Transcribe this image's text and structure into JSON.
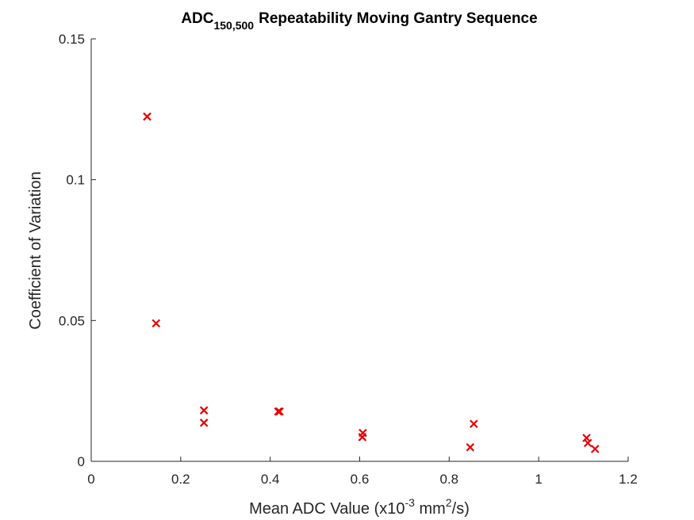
{
  "chart_data": {
    "type": "scatter",
    "title": {
      "main": "ADC",
      "subscript": "150,500",
      "rest": "Repeatability Moving Gantry Sequence"
    },
    "xlabel": {
      "prefix": "Mean ADC Value (x10",
      "exp1": "-3",
      "middle": " mm",
      "exp2": "2",
      "suffix": "/s)"
    },
    "ylabel": "Coefficient of Variation",
    "xlim": [
      0,
      1.2
    ],
    "ylim": [
      0,
      0.15
    ],
    "xticks": [
      0,
      0.2,
      0.4,
      0.6,
      0.8,
      1.0,
      1.2
    ],
    "xtick_labels": [
      "0",
      "0.2",
      "0.4",
      "0.6",
      "0.8",
      "1",
      "1.2"
    ],
    "yticks": [
      0,
      0.05,
      0.1,
      0.15
    ],
    "ytick_labels": [
      "0",
      "0.05",
      "0.1",
      "0.15"
    ],
    "marker": "x",
    "marker_color": "#e60000",
    "grid": false,
    "points": [
      {
        "x": 0.125,
        "y": 0.1224
      },
      {
        "x": 0.145,
        "y": 0.049
      },
      {
        "x": 0.252,
        "y": 0.0181
      },
      {
        "x": 0.252,
        "y": 0.0137
      },
      {
        "x": 0.418,
        "y": 0.0177
      },
      {
        "x": 0.421,
        "y": 0.0177
      },
      {
        "x": 0.607,
        "y": 0.0101
      },
      {
        "x": 0.606,
        "y": 0.0086
      },
      {
        "x": 0.847,
        "y": 0.005
      },
      {
        "x": 0.855,
        "y": 0.0133
      },
      {
        "x": 1.107,
        "y": 0.0083
      },
      {
        "x": 1.11,
        "y": 0.0065
      },
      {
        "x": 1.126,
        "y": 0.0044
      }
    ]
  }
}
